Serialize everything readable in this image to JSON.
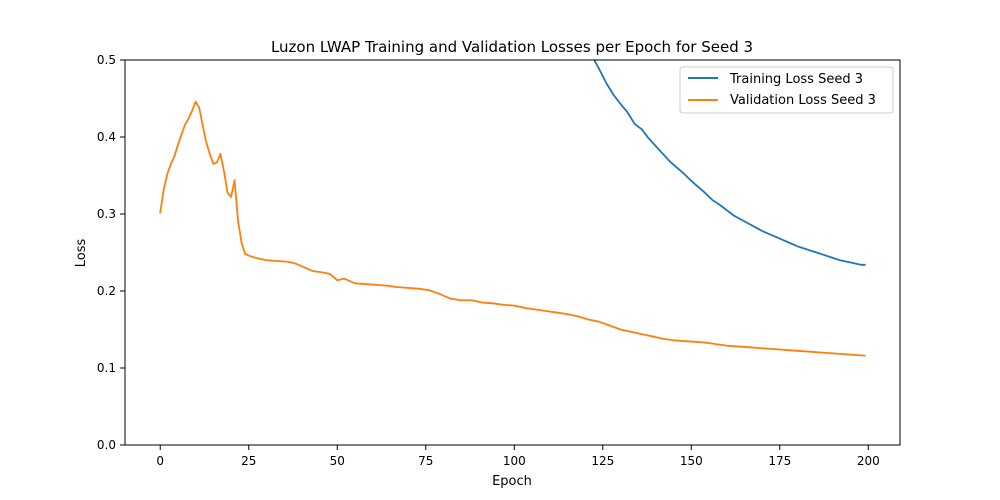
{
  "chart_data": {
    "type": "line",
    "title": "Luzon LWAP Training and Validation Losses per Epoch for Seed 3",
    "xlabel": "Epoch",
    "ylabel": "Loss",
    "xlim": [
      -9.95,
      208.95
    ],
    "ylim": [
      0.0,
      0.5
    ],
    "xticks": [
      0,
      25,
      50,
      75,
      100,
      125,
      150,
      175,
      200
    ],
    "yticks": [
      0.0,
      0.1,
      0.2,
      0.3,
      0.4,
      0.5
    ],
    "xtick_labels": [
      "0",
      "25",
      "50",
      "75",
      "100",
      "125",
      "150",
      "175",
      "200"
    ],
    "ytick_labels": [
      "0.0",
      "0.1",
      "0.2",
      "0.3",
      "0.4",
      "0.5"
    ],
    "grid": false,
    "legend": "top-right",
    "series": [
      {
        "name": "Training Loss Seed 3",
        "color": "#1f77b4",
        "x": [
          120,
          122,
          124,
          126,
          128,
          130,
          132,
          134,
          136,
          138,
          140,
          142,
          144,
          146,
          148,
          150,
          152,
          154,
          156,
          158,
          160,
          162,
          164,
          166,
          168,
          170,
          172,
          174,
          176,
          178,
          180,
          182,
          184,
          186,
          188,
          190,
          192,
          194,
          196,
          198,
          199
        ],
        "y": [
          0.53,
          0.505,
          0.488,
          0.47,
          0.455,
          0.443,
          0.432,
          0.417,
          0.41,
          0.398,
          0.388,
          0.378,
          0.368,
          0.36,
          0.352,
          0.343,
          0.335,
          0.327,
          0.318,
          0.312,
          0.305,
          0.298,
          0.293,
          0.288,
          0.283,
          0.278,
          0.274,
          0.27,
          0.266,
          0.262,
          0.258,
          0.255,
          0.252,
          0.249,
          0.246,
          0.243,
          0.24,
          0.238,
          0.236,
          0.234,
          0.234
        ]
      },
      {
        "name": "Validation Loss Seed 3",
        "color": "#ff7f0e",
        "x": [
          0,
          1,
          2,
          3,
          4,
          5,
          6,
          7,
          8,
          9,
          10,
          11,
          12,
          13,
          14,
          15,
          16,
          17,
          18,
          19,
          20,
          21,
          22,
          23,
          24,
          25,
          27,
          30,
          33,
          36,
          38,
          40,
          43,
          46,
          48,
          50,
          52,
          55,
          58,
          61,
          64,
          67,
          70,
          73,
          76,
          79,
          82,
          85,
          88,
          91,
          94,
          97,
          100,
          103,
          106,
          109,
          112,
          115,
          118,
          121,
          124,
          127,
          130,
          133,
          136,
          139,
          142,
          145,
          148,
          151,
          154,
          157,
          160,
          163,
          166,
          169,
          172,
          175,
          178,
          181,
          184,
          187,
          190,
          193,
          196,
          199
        ],
        "y": [
          0.302,
          0.332,
          0.352,
          0.365,
          0.375,
          0.39,
          0.403,
          0.416,
          0.424,
          0.434,
          0.446,
          0.438,
          0.415,
          0.393,
          0.378,
          0.365,
          0.367,
          0.378,
          0.356,
          0.328,
          0.322,
          0.344,
          0.29,
          0.262,
          0.248,
          0.246,
          0.243,
          0.24,
          0.239,
          0.238,
          0.236,
          0.232,
          0.226,
          0.224,
          0.222,
          0.214,
          0.216,
          0.21,
          0.209,
          0.208,
          0.207,
          0.205,
          0.204,
          0.203,
          0.201,
          0.196,
          0.19,
          0.188,
          0.188,
          0.185,
          0.184,
          0.182,
          0.181,
          0.178,
          0.176,
          0.174,
          0.172,
          0.17,
          0.167,
          0.163,
          0.16,
          0.155,
          0.15,
          0.147,
          0.144,
          0.141,
          0.138,
          0.136,
          0.135,
          0.134,
          0.133,
          0.131,
          0.129,
          0.128,
          0.127,
          0.126,
          0.125,
          0.124,
          0.123,
          0.122,
          0.121,
          0.12,
          0.119,
          0.118,
          0.117,
          0.116
        ]
      }
    ]
  }
}
